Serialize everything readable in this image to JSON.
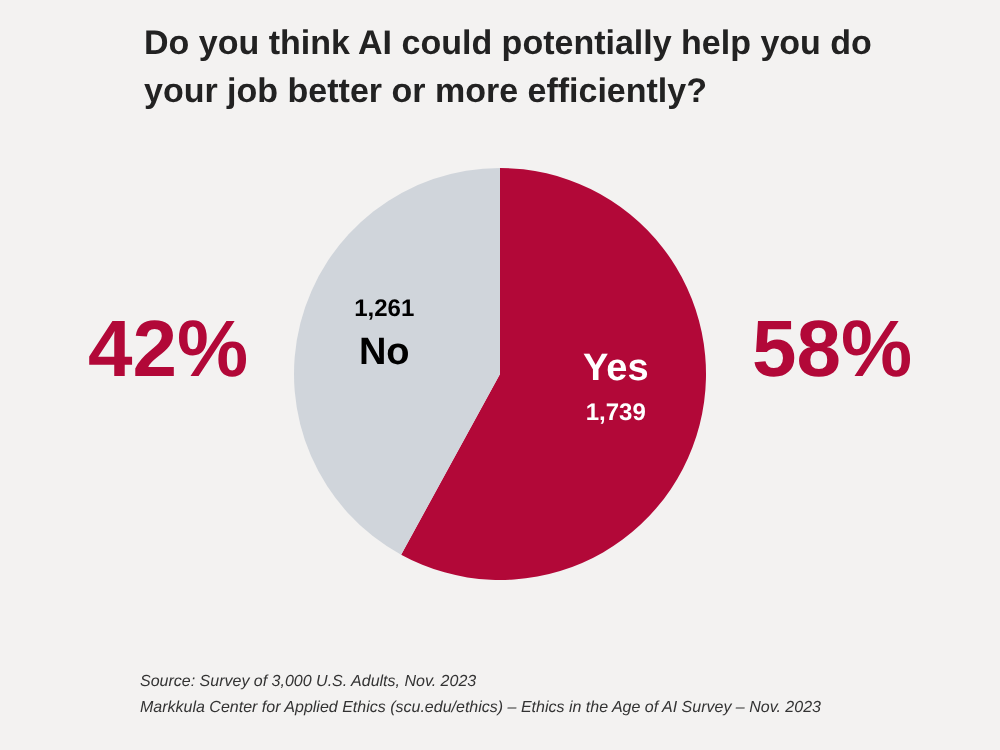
{
  "chart_data": {
    "type": "pie",
    "title": "Do you think AI could potentially help you do your job better or more efficiently?",
    "categories": [
      "Yes",
      "No"
    ],
    "values": [
      1739,
      1261
    ],
    "colors": [
      "#b20838",
      "#d0d5db"
    ],
    "value_labels": [
      "1,739",
      "1,261"
    ],
    "annotations": [
      "58%",
      "42%",
      "Source: Survey of 3,000 U.S. Adults, Nov. 2023",
      "Markkula Center for Applied Ethics  (scu.edu/ethics) –  Ethics in the Age of AI Survey – Nov. 2023"
    ]
  }
}
